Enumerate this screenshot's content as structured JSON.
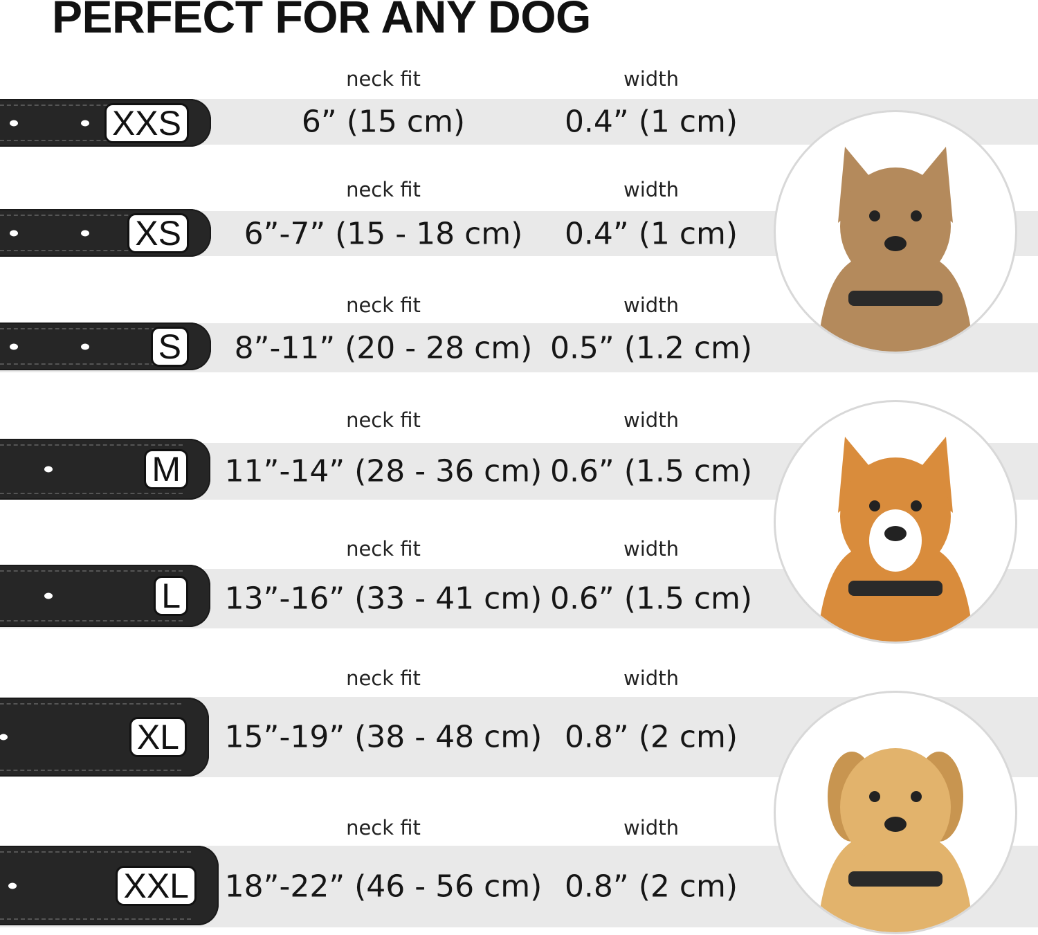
{
  "title": "PERFECT FOR ANY DOG",
  "column_labels": {
    "neck_fit": "neck fit",
    "width": "width"
  },
  "colors": {
    "band": "#e9e9e9",
    "collar": "#262626"
  },
  "sizes": [
    {
      "size": "XXS",
      "neck_fit": "6” (15 cm)",
      "width": "0.4” (1 cm)"
    },
    {
      "size": "XS",
      "neck_fit": "6”-7” (15 - 18 cm)",
      "width": "0.4” (1 cm)"
    },
    {
      "size": "S",
      "neck_fit": "8”-11” (20 - 28 cm)",
      "width": "0.5” (1.2 cm)"
    },
    {
      "size": "M",
      "neck_fit": "11”-14” (28 - 36 cm)",
      "width": "0.6” (1.5 cm)"
    },
    {
      "size": "L",
      "neck_fit": "13”-16” (33 - 41 cm)",
      "width": "0.6” (1.5 cm)"
    },
    {
      "size": "XL",
      "neck_fit": "15”-19” (38 - 48 cm)",
      "width": "0.8” (2 cm)"
    },
    {
      "size": "XXL",
      "neck_fit": "18”-22” (46 - 56 cm)",
      "width": "0.8” (2 cm)"
    }
  ],
  "dog_images": [
    "small-terrier-photo",
    "corgi-photo",
    "labrador-photo"
  ]
}
